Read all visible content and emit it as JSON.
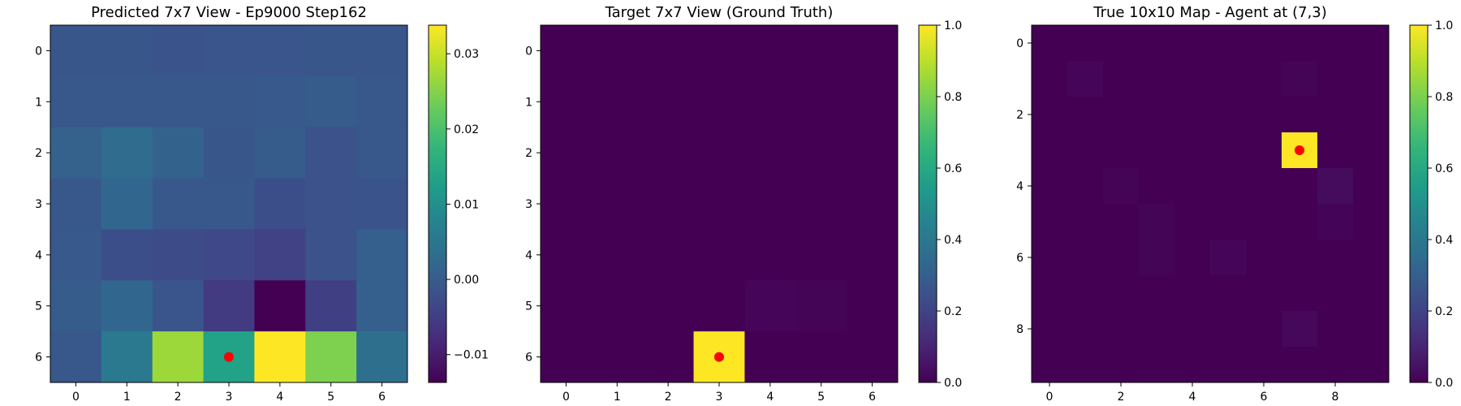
{
  "chart_data": [
    {
      "type": "heatmap",
      "title": "Predicted 7x7 View - Ep9000 Step162",
      "rows": 7,
      "cols": 7,
      "x_ticks": [
        0,
        1,
        2,
        3,
        4,
        5,
        6
      ],
      "y_ticks": [
        0,
        1,
        2,
        3,
        4,
        5,
        6
      ],
      "values": [
        [
          -0.001,
          -0.001,
          -0.0015,
          -0.0012,
          -0.0012,
          -0.001,
          -0.001
        ],
        [
          -0.0008,
          -0.0006,
          -0.0006,
          -0.0006,
          -0.0005,
          0.0,
          -0.0008
        ],
        [
          0.001,
          0.003,
          0.0012,
          -0.001,
          0.0,
          -0.0018,
          -0.0008
        ],
        [
          -0.0008,
          0.002,
          -0.0006,
          -0.0006,
          -0.0025,
          -0.0018,
          -0.0015
        ],
        [
          -0.0005,
          -0.0025,
          -0.003,
          -0.0035,
          -0.0045,
          -0.0018,
          0.0005
        ],
        [
          0.0,
          0.002,
          -0.0012,
          -0.0055,
          -0.0137,
          -0.0048,
          0.0005
        ],
        [
          -0.0008,
          0.0055,
          0.0268,
          0.0135,
          0.0338,
          0.0245,
          0.0035
        ]
      ],
      "vmin": -0.0137,
      "vmax": 0.0338,
      "colorbar_ticks": [
        0.03,
        0.02,
        0.01,
        0.0,
        -0.01
      ],
      "colorbar_labels": [
        "0.03",
        "0.02",
        "0.01",
        "0.00",
        "−0.01"
      ],
      "agent_marker": {
        "x": 3,
        "y": 6,
        "color": "#ff0000"
      }
    },
    {
      "type": "heatmap",
      "title": "Target 7x7 View (Ground Truth)",
      "rows": 7,
      "cols": 7,
      "x_ticks": [
        0,
        1,
        2,
        3,
        4,
        5,
        6
      ],
      "y_ticks": [
        0,
        1,
        2,
        3,
        4,
        5,
        6
      ],
      "values": [
        [
          0,
          0,
          0,
          0,
          0,
          0,
          0
        ],
        [
          0,
          0,
          0,
          0,
          0,
          0,
          0
        ],
        [
          0,
          0,
          0,
          0,
          0,
          0,
          0
        ],
        [
          0,
          0,
          0,
          0,
          0,
          0,
          0
        ],
        [
          0,
          0,
          0,
          0,
          0,
          0,
          0
        ],
        [
          0,
          0,
          0,
          0,
          0.015,
          0.01,
          0
        ],
        [
          0,
          0,
          0,
          1.0,
          0,
          0,
          0
        ]
      ],
      "vmin": 0,
      "vmax": 1.0,
      "colorbar_ticks": [
        1.0,
        0.8,
        0.6,
        0.4,
        0.2,
        0.0
      ],
      "colorbar_labels": [
        "1.0",
        "0.8",
        "0.6",
        "0.4",
        "0.2",
        "0.0"
      ],
      "agent_marker": {
        "x": 3,
        "y": 6,
        "color": "#ff0000"
      }
    },
    {
      "type": "heatmap",
      "title": "True 10x10 Map - Agent at (7,3)",
      "rows": 10,
      "cols": 10,
      "x_ticks": [
        0,
        2,
        4,
        6,
        8
      ],
      "y_ticks": [
        0,
        2,
        4,
        6,
        8
      ],
      "values": [
        [
          0,
          0,
          0,
          0,
          0,
          0,
          0,
          0,
          0,
          0
        ],
        [
          0,
          0.015,
          0,
          0,
          0,
          0,
          0,
          0.01,
          0,
          0
        ],
        [
          0,
          0,
          0,
          0,
          0,
          0,
          0,
          0,
          0,
          0
        ],
        [
          0,
          0,
          0,
          0,
          0,
          0,
          0,
          1.0,
          0,
          0
        ],
        [
          0,
          0,
          0.01,
          0,
          0,
          0,
          0,
          0,
          0.03,
          0
        ],
        [
          0,
          0,
          0,
          0.01,
          0,
          0,
          0,
          0,
          0.012,
          0
        ],
        [
          0,
          0,
          0,
          0.01,
          0,
          0.015,
          0,
          0,
          0,
          0
        ],
        [
          0,
          0,
          0,
          0,
          0,
          0,
          0,
          0,
          0,
          0
        ],
        [
          0,
          0,
          0,
          0,
          0,
          0,
          0,
          0.02,
          0,
          0
        ],
        [
          0,
          0,
          0,
          0,
          0,
          0,
          0,
          0,
          0,
          0
        ]
      ],
      "vmin": 0,
      "vmax": 1.0,
      "colorbar_ticks": [
        1.0,
        0.8,
        0.6,
        0.4,
        0.2,
        0.0
      ],
      "colorbar_labels": [
        "1.0",
        "0.8",
        "0.6",
        "0.4",
        "0.2",
        "0.0"
      ],
      "agent_marker": {
        "x": 7,
        "y": 3,
        "color": "#ff0000"
      }
    }
  ]
}
